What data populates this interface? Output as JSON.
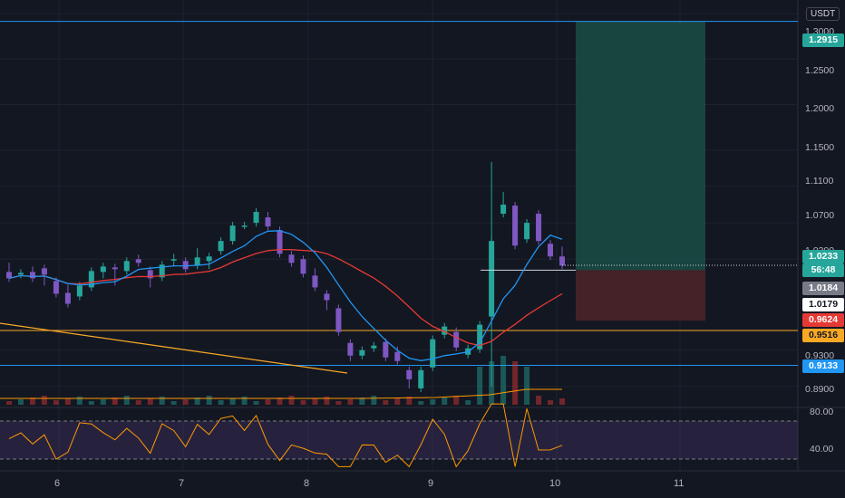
{
  "currency": "USDT",
  "colors": {
    "background": "#131722",
    "up": "#26a69a",
    "down": "#7e57c2",
    "ma_fast": "#2196f3",
    "ma_slow": "#e53935",
    "support": "#f9a825",
    "level_line": "#2196f3",
    "rsi_line": "#ff9800",
    "rsi_band": "#7e57c2",
    "target_zone": "#1b4d47",
    "stop_zone": "#4a2428"
  },
  "price_axis": {
    "ticks": [
      "1.3000",
      "1.2500",
      "1.2000",
      "1.1500",
      "1.1100",
      "1.0700",
      "1.0300",
      "0.9300",
      "0.8900"
    ],
    "tags": {
      "target": {
        "value": "1.2915",
        "color": "#26a69a"
      },
      "current_price": {
        "value": "1.0233",
        "countdown": "56:48",
        "color": "#26a69a"
      },
      "ma_fast_value": {
        "value": "1.0184",
        "color": "#787b86"
      },
      "entry_value": {
        "value": "1.0179",
        "color": "#ffffff"
      },
      "stop": {
        "value": "0.9624",
        "color": "#e53935"
      },
      "support": {
        "value": "0.9516",
        "color": "#f9a825"
      },
      "level": {
        "value": "0.9133",
        "color": "#2196f3"
      }
    }
  },
  "rsi_axis": {
    "ticks": [
      "80.00",
      "40.00"
    ]
  },
  "time_axis": {
    "labels": [
      "6",
      "7",
      "8",
      "9",
      "10",
      "11"
    ]
  },
  "chart_data": {
    "type": "candlestick",
    "price_range": [
      0.87,
      1.31
    ],
    "levels": {
      "target": 1.2915,
      "entry": 1.0179,
      "stop": 0.9624,
      "support": 0.9516,
      "level": 0.9133
    },
    "candles": [
      [
        1.016,
        1.022,
        1.011,
        1.009
      ],
      [
        1.013,
        1.013,
        1.014,
        1.015
      ],
      [
        1.016,
        1.018,
        1.011,
        1.009
      ],
      [
        1.02,
        1.005,
        1.005,
        1.013
      ],
      [
        1.006,
        0.99,
        0.996,
        0.992
      ],
      [
        0.993,
        0.998,
        0.991,
        0.981
      ],
      [
        0.989,
        1.001,
        1.008,
        1.001
      ],
      [
        0.999,
        1.01,
        1.018,
        1.017
      ],
      [
        1.016,
        1.018,
        1.013,
        1.022
      ],
      [
        1.021,
        1.007,
        1.005,
        1.019
      ],
      [
        1.017,
        1.023,
        1.024,
        1.028
      ],
      [
        1.03,
        1.031,
        1.03,
        1.026
      ],
      [
        1.018,
        1.006,
        1.003,
        1.009
      ],
      [
        1.01,
        1.011,
        1.017,
        1.024
      ],
      [
        1.029,
        1.032,
        1.026,
        1.03
      ],
      [
        1.028,
        1.016,
        1.023,
        1.019
      ],
      [
        1.023,
        1.038,
        1.035,
        1.032
      ],
      [
        1.028,
        1.025,
        1.023,
        1.033
      ],
      [
        1.039,
        1.048,
        1.051,
        1.05
      ],
      [
        1.05,
        1.053,
        1.063,
        1.067
      ],
      [
        1.067,
        1.063,
        1.072,
        1.067
      ],
      [
        1.07,
        1.077,
        1.082,
        1.082
      ],
      [
        1.076,
        1.078,
        1.07,
        1.066
      ],
      [
        1.062,
        1.053,
        1.045,
        1.036
      ],
      [
        1.035,
        1.028,
        1.03,
        1.026
      ],
      [
        1.03,
        1.022,
        1.021,
        1.014
      ],
      [
        1.012,
        1.016,
        1.005,
        0.999
      ],
      [
        0.992,
        0.983,
        0.978,
        0.985
      ],
      [
        0.976,
        0.966,
        0.958,
        0.95
      ],
      [
        0.938,
        0.938,
        0.922,
        0.924
      ],
      [
        0.924,
        0.928,
        0.926,
        0.93
      ],
      [
        0.932,
        0.927,
        0.933,
        0.935
      ],
      [
        0.939,
        0.931,
        0.929,
        0.922
      ],
      [
        0.928,
        0.93,
        0.926,
        0.918
      ],
      [
        0.908,
        0.888,
        0.892,
        0.898
      ],
      [
        0.888,
        0.893,
        0.897,
        0.908
      ],
      [
        0.911,
        0.921,
        0.935,
        0.942
      ],
      [
        0.947,
        0.949,
        0.956,
        0.956
      ],
      [
        0.95,
        0.951,
        0.944,
        0.933
      ],
      [
        0.925,
        0.932,
        0.93,
        0.932
      ],
      [
        0.931,
        0.944,
        0.951,
        0.958
      ],
      [
        0.967,
        0.998,
        1.025,
        1.05
      ],
      [
        1.08,
        1.1,
        1.097,
        1.09
      ],
      [
        1.089,
        1.08,
        1.047,
        1.045
      ],
      [
        1.052,
        1.053,
        1.066,
        1.07
      ],
      [
        1.08,
        1.072,
        1.066,
        1.05
      ],
      [
        1.047,
        1.04,
        1.036,
        1.033
      ],
      [
        1.033,
        1.04,
        1.03,
        1.023
      ]
    ],
    "ma_fast": "1.05 → 0.93 → 1.018",
    "ma_slow": "1.012 → 1.020 → 1.018",
    "volume": "relative bars, spike near day 9",
    "rsi": {
      "overbought": 70,
      "oversold": 30
    }
  }
}
